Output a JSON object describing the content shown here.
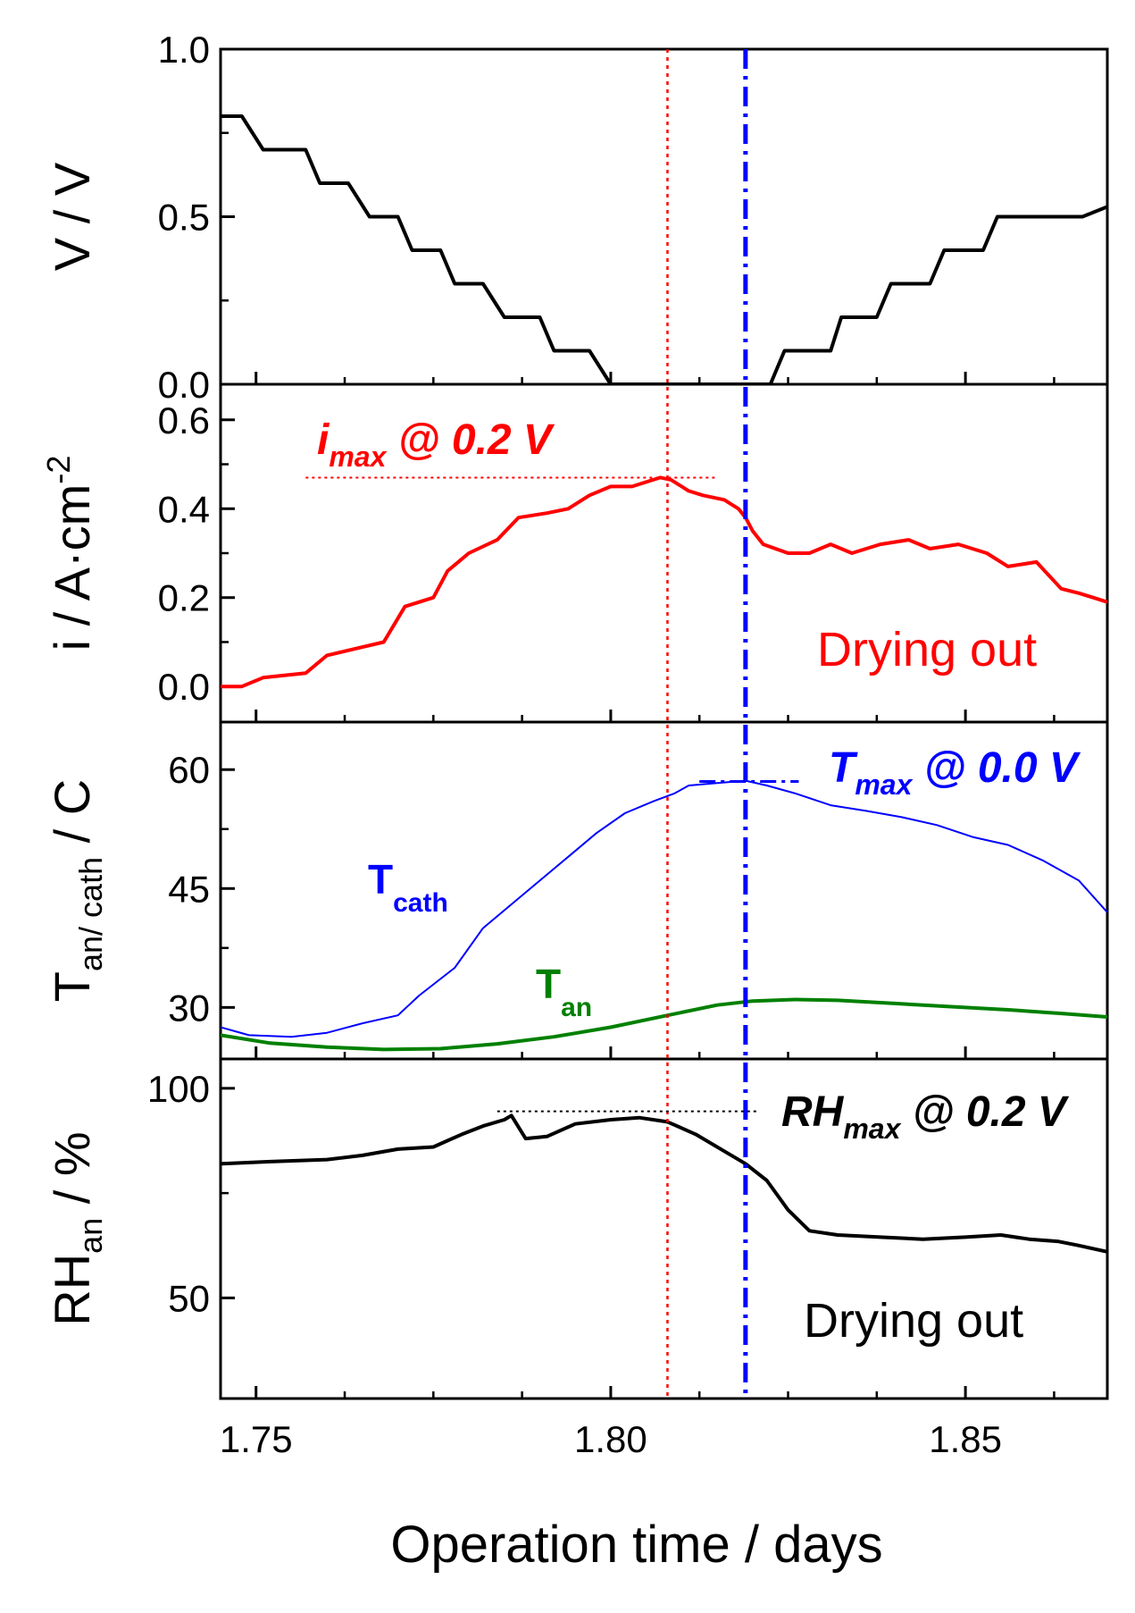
{
  "figure": {
    "xlabel": "Operation time / days",
    "xticks": [
      "1.75",
      "1.80",
      "1.85"
    ]
  },
  "markers": {
    "imax_time": 1.808,
    "tmax_time": 1.819,
    "colors": {
      "imax": "#ff0000",
      "tmax": "#0000ff"
    }
  },
  "chart_data": [
    {
      "type": "line",
      "panel": "voltage",
      "ylabel": "V / V",
      "xlim": [
        1.745,
        1.87
      ],
      "ylim": [
        0,
        1
      ],
      "yticks": [
        "0.0",
        "0.5",
        "1.0"
      ],
      "series": [
        {
          "name": "V",
          "color": "#000000",
          "x": [
            1.745,
            1.748,
            1.751,
            1.757,
            1.759,
            1.763,
            1.766,
            1.77,
            1.772,
            1.776,
            1.778,
            1.782,
            1.785,
            1.79,
            1.792,
            1.797,
            1.8,
            1.804,
            1.808,
            1.813,
            1.8165,
            1.819,
            1.8225,
            1.8245,
            1.831,
            1.8325,
            1.8375,
            1.8395,
            1.845,
            1.847,
            1.8525,
            1.8545,
            1.859,
            1.8605,
            1.8665,
            1.87
          ],
          "y": [
            0.8,
            0.8,
            0.7,
            0.7,
            0.6,
            0.6,
            0.5,
            0.5,
            0.4,
            0.4,
            0.3,
            0.3,
            0.2,
            0.2,
            0.1,
            0.1,
            0.0,
            0.0,
            0.0,
            0.0,
            0.0,
            0.0,
            0.0,
            0.1,
            0.1,
            0.2,
            0.2,
            0.3,
            0.3,
            0.4,
            0.4,
            0.5,
            0.5,
            0.5,
            0.5,
            0.53
          ]
        }
      ]
    },
    {
      "type": "line",
      "panel": "current",
      "ylabel": "i / A·cm",
      "ylabel_sup": "-2",
      "xlim": [
        1.745,
        1.87
      ],
      "ylim": [
        -0.08,
        0.68
      ],
      "yticks": [
        "0.0",
        "0.2",
        "0.4",
        "0.6"
      ],
      "annotations": {
        "imax": {
          "base": "i",
          "sub": "max",
          "rest": " @ 0.2 V",
          "level": 0.47,
          "x_start": 1.757,
          "x_end": 1.815
        },
        "drying": "Drying out"
      },
      "series": [
        {
          "name": "i",
          "color": "#ff0000",
          "x": [
            1.745,
            1.748,
            1.751,
            1.757,
            1.76,
            1.764,
            1.768,
            1.771,
            1.775,
            1.777,
            1.78,
            1.784,
            1.787,
            1.791,
            1.794,
            1.797,
            1.8,
            1.803,
            1.805,
            1.807,
            1.8085,
            1.811,
            1.813,
            1.816,
            1.818,
            1.819,
            1.82,
            1.8215,
            1.825,
            1.828,
            1.831,
            1.834,
            1.838,
            1.842,
            1.845,
            1.849,
            1.853,
            1.856,
            1.86,
            1.8635,
            1.866,
            1.868,
            1.87
          ],
          "y": [
            0.0,
            0.0,
            0.02,
            0.03,
            0.07,
            0.085,
            0.1,
            0.18,
            0.2,
            0.26,
            0.3,
            0.33,
            0.38,
            0.39,
            0.4,
            0.43,
            0.45,
            0.45,
            0.46,
            0.47,
            0.465,
            0.44,
            0.43,
            0.42,
            0.4,
            0.38,
            0.35,
            0.32,
            0.3,
            0.3,
            0.32,
            0.3,
            0.32,
            0.33,
            0.31,
            0.32,
            0.3,
            0.27,
            0.28,
            0.22,
            0.21,
            0.2,
            0.19
          ]
        }
      ]
    },
    {
      "type": "line",
      "panel": "temperature",
      "ylabel_main": "T",
      "ylabel_sub": "an/ cath",
      "ylabel_rest": " / C",
      "xlim": [
        1.745,
        1.87
      ],
      "ylim": [
        23.5,
        66
      ],
      "yticks": [
        "30",
        "45",
        "60"
      ],
      "annotations": {
        "tmax": {
          "base": "T",
          "sub": "max",
          "rest": " @ 0.0 V",
          "level": 58.5,
          "x_start": 1.8125,
          "x_end": 1.8265
        },
        "tcath": {
          "base": "T",
          "sub": "cath"
        },
        "tan": {
          "base": "T",
          "sub": "an"
        }
      },
      "series": [
        {
          "name": "T cath",
          "color": "#0000ff",
          "x": [
            1.745,
            1.749,
            1.755,
            1.76,
            1.765,
            1.77,
            1.773,
            1.778,
            1.782,
            1.786,
            1.79,
            1.794,
            1.798,
            1.802,
            1.806,
            1.809,
            1.811,
            1.815,
            1.819,
            1.822,
            1.826,
            1.831,
            1.836,
            1.841,
            1.846,
            1.851,
            1.856,
            1.861,
            1.866,
            1.87
          ],
          "y": [
            27.5,
            26.5,
            26.3,
            26.8,
            28.0,
            29.0,
            31.5,
            35.0,
            40.0,
            43.0,
            46.0,
            49.0,
            52.0,
            54.5,
            56.0,
            57.0,
            58.0,
            58.3,
            58.6,
            58.0,
            57.0,
            55.5,
            54.8,
            54.0,
            53.0,
            51.5,
            50.5,
            48.5,
            46.0,
            42.0
          ]
        },
        {
          "name": "T an",
          "color": "#008000",
          "x": [
            1.745,
            1.752,
            1.76,
            1.768,
            1.776,
            1.784,
            1.792,
            1.8,
            1.808,
            1.815,
            1.82,
            1.826,
            1.832,
            1.84,
            1.848,
            1.856,
            1.864,
            1.87
          ],
          "y": [
            26.5,
            25.5,
            25.0,
            24.7,
            24.8,
            25.4,
            26.3,
            27.5,
            29.0,
            30.3,
            30.8,
            31.0,
            30.9,
            30.5,
            30.1,
            29.7,
            29.2,
            28.8
          ]
        }
      ]
    },
    {
      "type": "line",
      "panel": "humidity",
      "ylabel_main": "RH",
      "ylabel_sub": "an",
      "ylabel_rest": " / %",
      "xlim": [
        1.745,
        1.87
      ],
      "ylim": [
        26,
        107
      ],
      "yticks": [
        "50",
        "100"
      ],
      "annotations": {
        "rhmax": {
          "base": "RH",
          "sub": "max",
          "rest": " @ 0.2 V",
          "level": 94.5,
          "x_start": 1.784,
          "x_end": 1.8205
        },
        "drying": "Drying out"
      },
      "series": [
        {
          "name": "RH an",
          "color": "#000000",
          "x": [
            1.745,
            1.752,
            1.76,
            1.765,
            1.77,
            1.775,
            1.779,
            1.782,
            1.785,
            1.786,
            1.788,
            1.791,
            1.795,
            1.8,
            1.804,
            1.808,
            1.812,
            1.816,
            1.819,
            1.822,
            1.825,
            1.828,
            1.832,
            1.838,
            1.844,
            1.85,
            1.855,
            1.859,
            1.863,
            1.866,
            1.87
          ],
          "y": [
            82,
            82.5,
            83,
            84,
            85.5,
            86,
            89,
            91,
            92.5,
            93.5,
            88,
            88.5,
            91.5,
            92.5,
            93,
            92,
            89,
            85,
            82,
            78,
            71,
            66,
            65,
            64.5,
            64,
            64.5,
            65,
            64,
            63.5,
            62.5,
            61
          ]
        }
      ]
    }
  ]
}
